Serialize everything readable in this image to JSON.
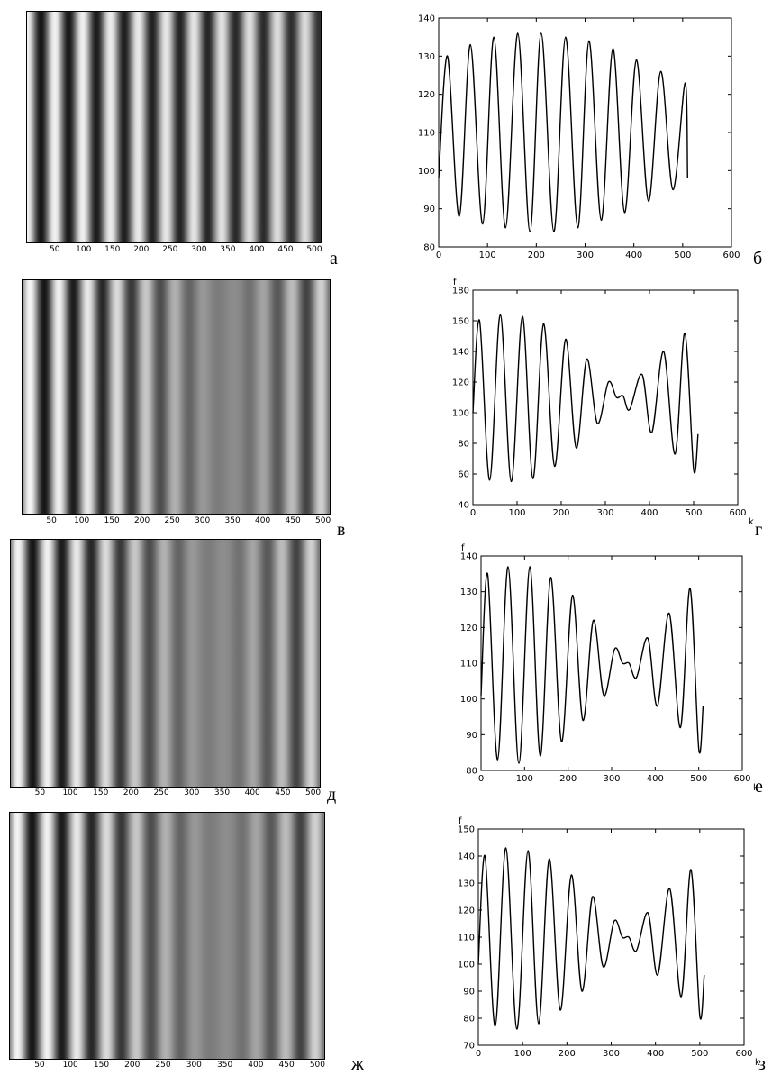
{
  "panels": [
    {
      "letter": "а",
      "type": "stripes",
      "xticks": [
        "50",
        "100",
        "150",
        "200",
        "250",
        "300",
        "350",
        "400",
        "450",
        "500"
      ]
    },
    {
      "letter": "б",
      "type": "line"
    },
    {
      "letter": "в",
      "type": "stripes",
      "xticks": [
        "50",
        "100",
        "150",
        "200",
        "250",
        "300",
        "350",
        "400",
        "450",
        "500"
      ]
    },
    {
      "letter": "г",
      "type": "line"
    },
    {
      "letter": "д",
      "type": "stripes",
      "xticks": [
        "50",
        "100",
        "150",
        "200",
        "250",
        "300",
        "350",
        "400",
        "450",
        "500"
      ]
    },
    {
      "letter": "е",
      "type": "line"
    },
    {
      "letter": "ж",
      "type": "stripes",
      "xticks": [
        "50",
        "100",
        "150",
        "200",
        "250",
        "300",
        "350",
        "400",
        "450",
        "500"
      ]
    },
    {
      "letter": "з",
      "type": "line"
    }
  ],
  "chart_data": [
    {
      "type": "line",
      "panel": "б",
      "xlabel": "",
      "ylabel": "",
      "xlim": [
        0,
        600
      ],
      "ylim": [
        80,
        140
      ],
      "xticks": [
        0,
        100,
        200,
        300,
        400,
        500,
        600
      ],
      "yticks": [
        80,
        90,
        100,
        110,
        120,
        130,
        140
      ],
      "series": [
        {
          "x": [
            0,
            18,
            42,
            65,
            90,
            113,
            137,
            162,
            187,
            210,
            236,
            260,
            285,
            308,
            333,
            357,
            381,
            405,
            430,
            455,
            480,
            505,
            510
          ],
          "values": [
            98,
            130,
            88,
            133,
            86,
            135,
            85,
            136,
            84,
            136,
            84,
            135,
            85,
            134,
            87,
            132,
            89,
            129,
            92,
            126,
            95,
            123,
            98
          ]
        }
      ]
    },
    {
      "type": "line",
      "panel": "г",
      "xlabel": "k",
      "ylabel": "f",
      "xlim": [
        0,
        600
      ],
      "ylim": [
        40,
        180
      ],
      "xticks": [
        0,
        100,
        200,
        300,
        400,
        500,
        600
      ],
      "yticks": [
        40,
        60,
        80,
        100,
        120,
        140,
        160,
        180
      ],
      "series": [
        {
          "x": [
            0,
            15,
            38,
            62,
            87,
            112,
            136,
            160,
            185,
            210,
            234,
            258,
            282,
            307,
            325,
            340,
            355,
            383,
            405,
            432,
            458,
            480,
            500,
            510
          ],
          "values": [
            100,
            160,
            56,
            164,
            55,
            163,
            57,
            158,
            65,
            148,
            77,
            135,
            93,
            120,
            110,
            111,
            102,
            125,
            87,
            140,
            73,
            152,
            63,
            86
          ]
        }
      ]
    },
    {
      "type": "line",
      "panel": "е",
      "xlabel": "k",
      "ylabel": "f",
      "xlim": [
        0,
        600
      ],
      "ylim": [
        80,
        140
      ],
      "xticks": [
        0,
        100,
        200,
        300,
        400,
        500,
        600
      ],
      "yticks": [
        80,
        90,
        100,
        110,
        120,
        130,
        140
      ],
      "series": [
        {
          "x": [
            0,
            15,
            38,
            62,
            87,
            112,
            136,
            160,
            185,
            210,
            234,
            258,
            282,
            307,
            325,
            340,
            357,
            383,
            405,
            432,
            458,
            480,
            500,
            510
          ],
          "values": [
            101,
            135,
            83,
            137,
            82,
            137,
            84,
            134,
            88,
            129,
            94,
            122,
            101,
            114,
            110,
            110,
            106,
            117,
            98,
            124,
            92,
            131,
            86,
            98
          ]
        }
      ]
    },
    {
      "type": "line",
      "panel": "з",
      "xlabel": "k",
      "ylabel": "f",
      "xlim": [
        0,
        600
      ],
      "ylim": [
        70,
        150
      ],
      "xticks": [
        0,
        100,
        200,
        300,
        400,
        500,
        600
      ],
      "yticks": [
        70,
        80,
        90,
        100,
        110,
        120,
        130,
        140,
        150
      ],
      "series": [
        {
          "x": [
            0,
            15,
            38,
            62,
            87,
            112,
            136,
            160,
            185,
            210,
            234,
            258,
            282,
            307,
            325,
            340,
            357,
            383,
            405,
            432,
            458,
            480,
            500,
            510
          ],
          "values": [
            100,
            140,
            77,
            143,
            76,
            142,
            78,
            139,
            83,
            133,
            90,
            125,
            99,
            116,
            110,
            110,
            105,
            119,
            96,
            128,
            88,
            135,
            81,
            96
          ]
        }
      ]
    }
  ]
}
